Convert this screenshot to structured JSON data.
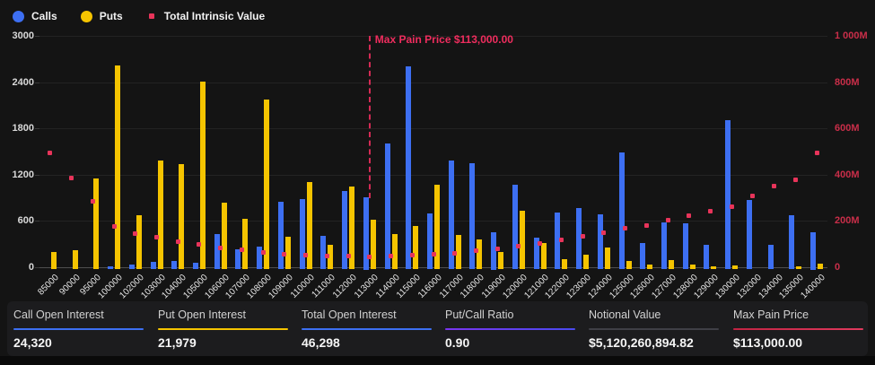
{
  "colors": {
    "background": "#141414",
    "panel": "#1c1c1e",
    "calls_blue": "#3D6FF2",
    "puts_yellow": "#F5C400",
    "intrinsic_red": "#E8345A",
    "right_axis_label": "#C92E49",
    "gridline": "#232323",
    "baseline": "#4f4f4f"
  },
  "legend": {
    "items": [
      {
        "label": "Calls",
        "shape": "circle",
        "color": "#3D6FF2"
      },
      {
        "label": "Puts",
        "shape": "circle",
        "color": "#F5C400"
      },
      {
        "label": "Total Intrinsic Value",
        "shape": "square",
        "color": "#E8345A"
      }
    ]
  },
  "chart_data": {
    "type": "bar",
    "title": "",
    "categories": [
      "85000",
      "90000",
      "95000",
      "100000",
      "102000",
      "103000",
      "104000",
      "105000",
      "106000",
      "107000",
      "108000",
      "109000",
      "110000",
      "111000",
      "112000",
      "113000",
      "114000",
      "115000",
      "116000",
      "117000",
      "118000",
      "119000",
      "120000",
      "121000",
      "122000",
      "123000",
      "124000",
      "125000",
      "126000",
      "127000",
      "128000",
      "129000",
      "130000",
      "132000",
      "134000",
      "135000",
      "140000"
    ],
    "series": [
      {
        "name": "Calls",
        "type": "bar",
        "axis": "left",
        "color": "#3D6FF2",
        "values": [
          0,
          0,
          0,
          10,
          30,
          60,
          70,
          50,
          430,
          230,
          260,
          840,
          880,
          400,
          980,
          900,
          1600,
          2600,
          690,
          1380,
          1340,
          450,
          1070,
          380,
          700,
          760,
          680,
          1490,
          310,
          580,
          560,
          290,
          1910,
          870,
          290,
          670,
          450
        ]
      },
      {
        "name": "Puts",
        "type": "bar",
        "axis": "left",
        "color": "#F5C400",
        "values": [
          190,
          220,
          1150,
          2620,
          670,
          1380,
          1330,
          2410,
          830,
          620,
          2170,
          390,
          1100,
          290,
          1040,
          610,
          420,
          530,
          1070,
          410,
          360,
          190,
          730,
          310,
          100,
          160,
          250,
          70,
          30,
          90,
          25,
          10,
          15,
          5,
          5,
          10,
          40
        ]
      },
      {
        "name": "Total Intrinsic Value",
        "type": "scatter",
        "axis": "right",
        "unit": "M",
        "color": "#E8345A",
        "values": [
          494,
          385,
          282,
          175,
          145,
          129,
          110,
          96,
          82,
          74,
          63,
          54,
          52,
          48,
          46,
          44,
          47,
          49,
          53,
          59,
          68,
          77,
          90,
          102,
          115,
          131,
          148,
          166,
          180,
          203,
          221,
          240,
          261,
          306,
          349,
          376,
          493
        ]
      }
    ],
    "left_axis": {
      "min": 0,
      "max": 3000,
      "ticks": [
        "0",
        "600",
        "1200",
        "1800",
        "2400",
        "3000"
      ]
    },
    "right_axis": {
      "min": 0,
      "max": 1000,
      "unit": "M",
      "ticks": [
        "0",
        "200M",
        "400M",
        "600M",
        "800M",
        "1 000M"
      ]
    },
    "max_pain": {
      "category": "113000",
      "label": "Max Pain Price $113,000.00"
    },
    "grid": true,
    "legend_position": "top-left"
  },
  "stats": {
    "items": [
      {
        "label": "Call Open Interest",
        "value": "24,320",
        "underline": "#3D6FF2"
      },
      {
        "label": "Put Open Interest",
        "value": "21,979",
        "underline": "#F5C400"
      },
      {
        "label": "Total Open Interest",
        "value": "46,298",
        "underline": "#3D6FF2"
      },
      {
        "label": "Put/Call Ratio",
        "value": "0.90",
        "underline": "linear-gradient(90deg,#7a35f0,#4a4af0)"
      },
      {
        "label": "Notional Value",
        "value": "$5,120,260,894.82",
        "underline": "#3f3f46"
      },
      {
        "label": "Max Pain Price",
        "value": "$113,000.00",
        "underline": "linear-gradient(90deg,#c22443,#e03a5e)"
      }
    ]
  }
}
